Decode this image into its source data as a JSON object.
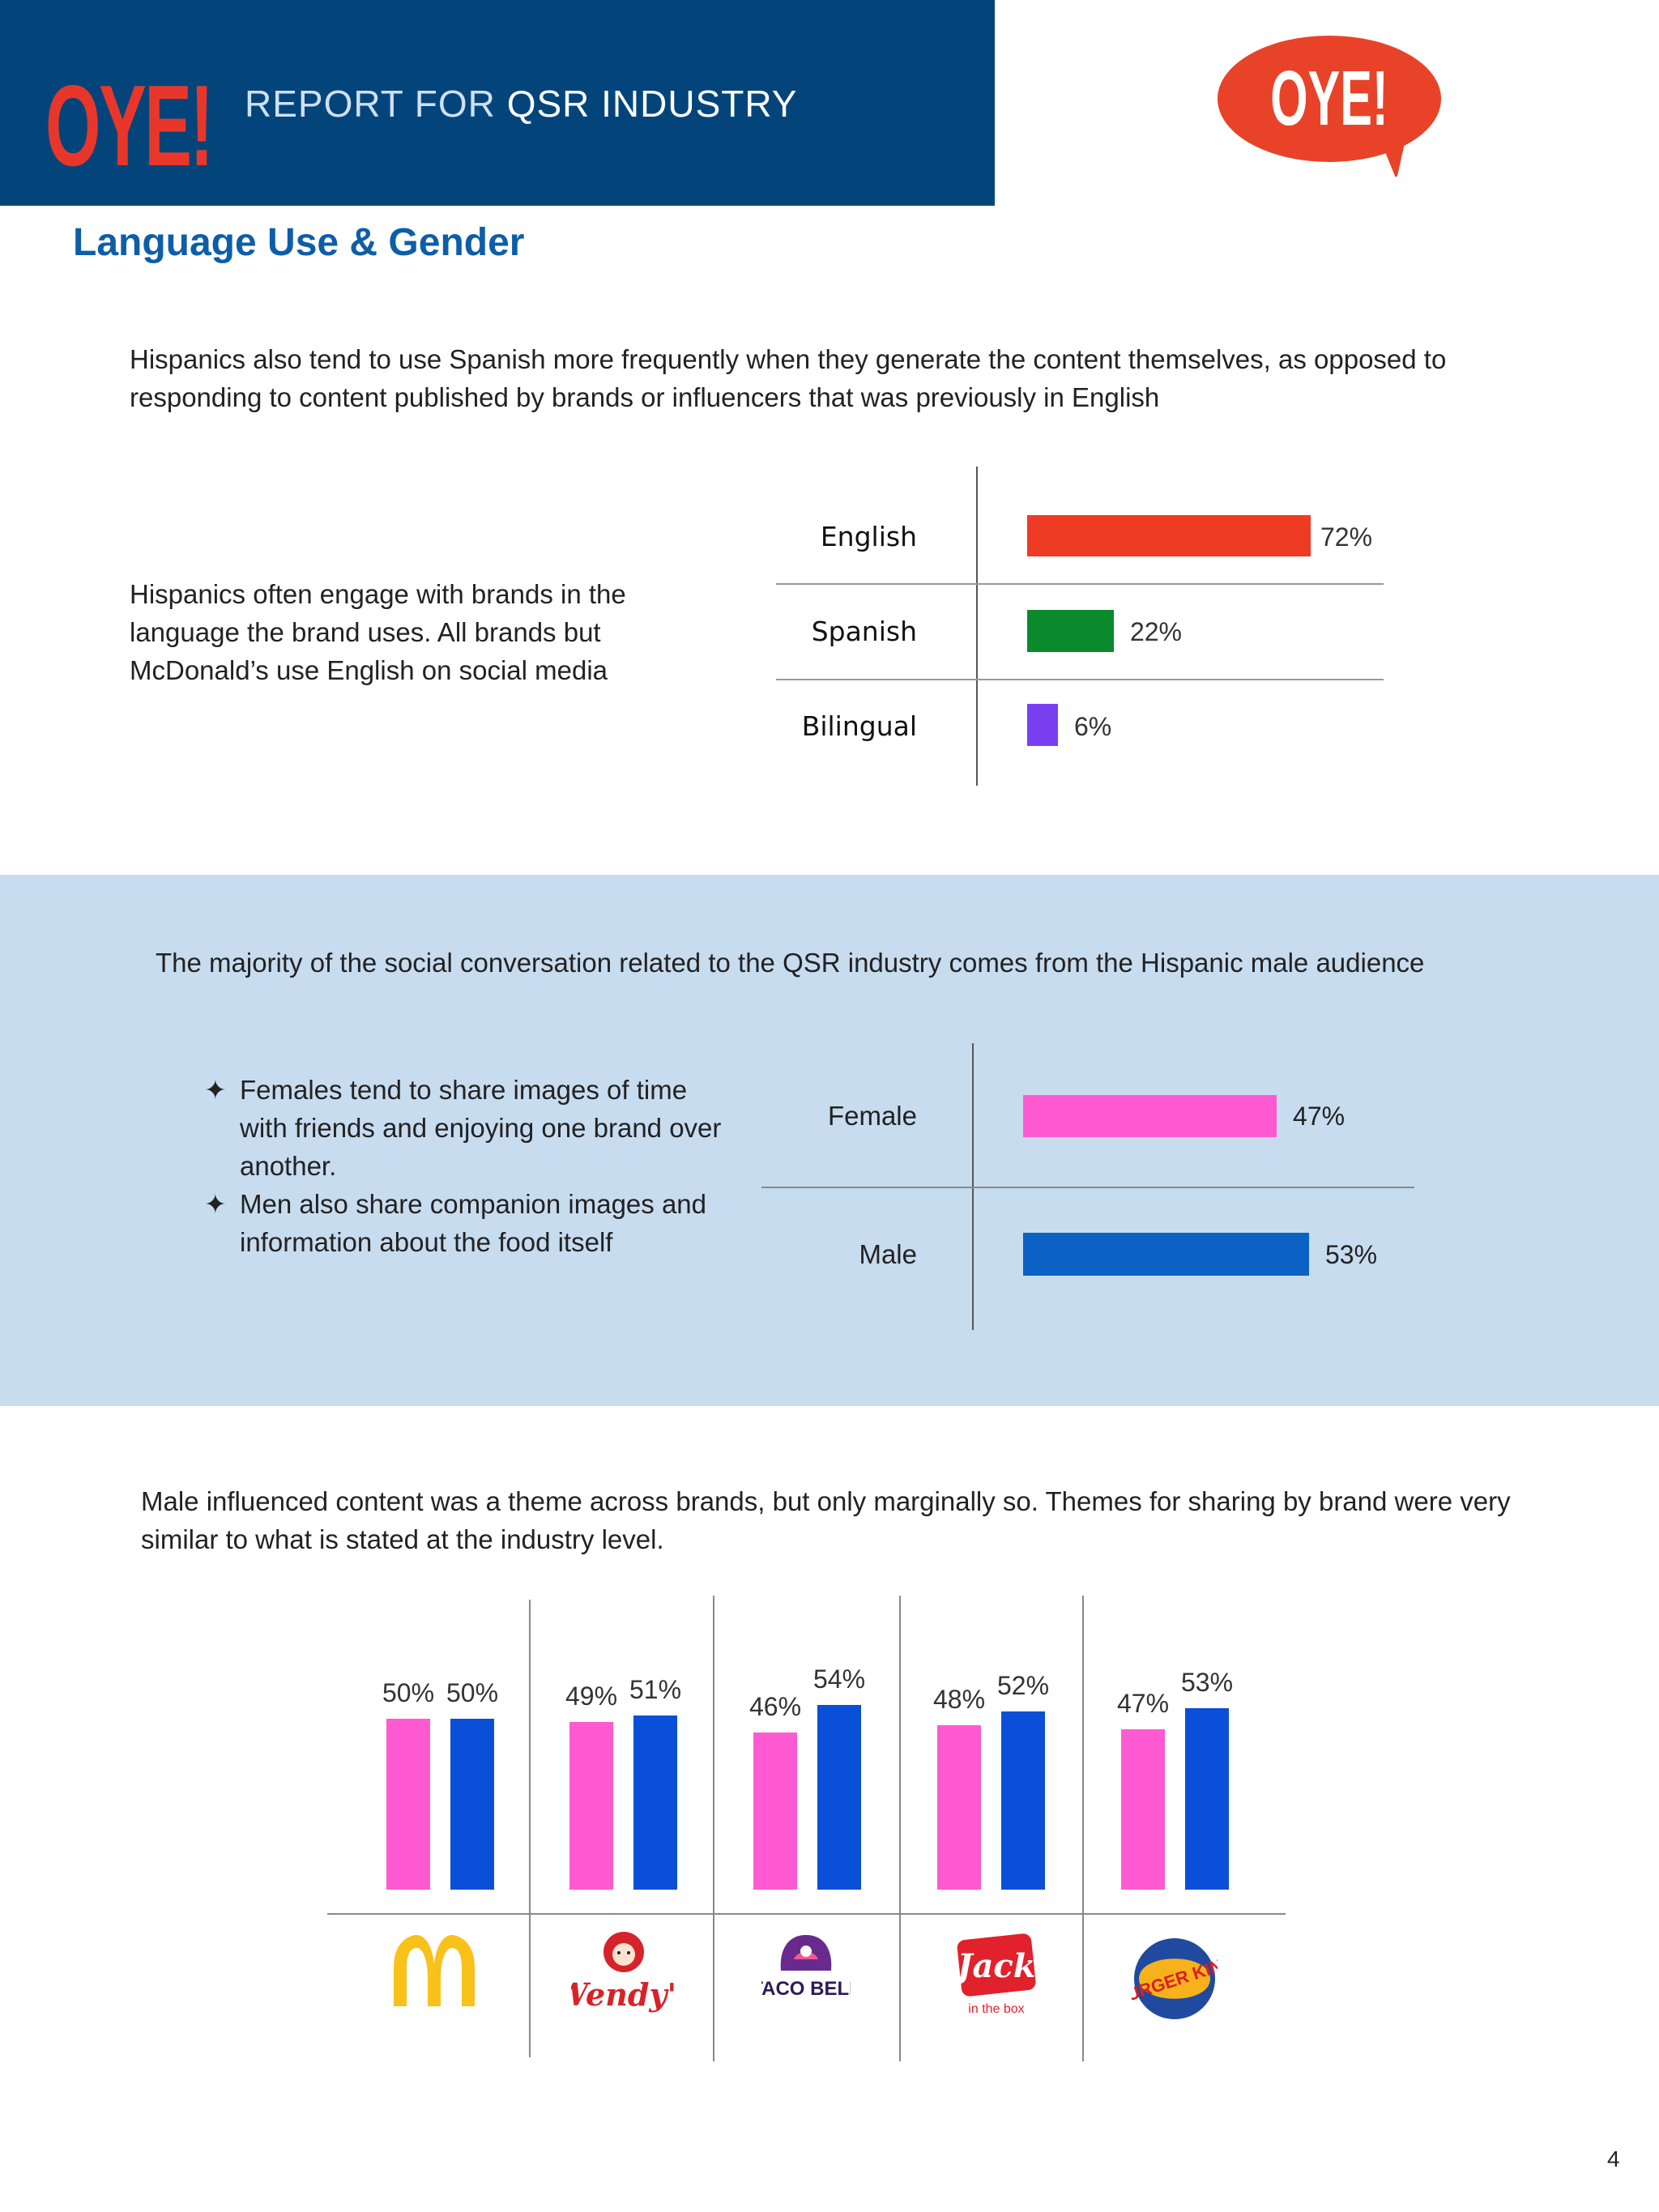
{
  "header": {
    "brand": "OYE!",
    "report_prefix": "REPORT FOR",
    "report_subject": "QSR INDUSTRY",
    "logo_text": "OYE!"
  },
  "page_title": "Language Use & Gender",
  "section1": {
    "intro": "Hispanics also tend to use Spanish more frequently when they generate the content themselves, as opposed to responding to content published by brands or influencers that was previously in English",
    "note": "Hispanics often engage with brands in the language the brand uses. All brands but McDonald’s use English on social media"
  },
  "section2": {
    "intro": "The majority of the social conversation related to the QSR industry comes from the Hispanic male audience",
    "bullets": [
      "Females tend to share images of time with friends and enjoying one brand over another.",
      "Men also share companion images and information about the food itself"
    ],
    "bullet_symbol": "✦"
  },
  "section3": {
    "intro": "Male influenced content was a theme across brands, but only marginally so. Themes for sharing by brand were very similar to what is stated at the industry level."
  },
  "page_number": "4",
  "colors": {
    "header_blue": "#03457b",
    "title_blue": "#0d5ea8",
    "band_blue": "#c8dcf0",
    "english": "#ee3b24",
    "spanish": "#0a8a2c",
    "bilingual": "#7b3ff2",
    "female": "#ff5ad2",
    "male_gender": "#0b62c4",
    "male_brand": "#0a4fd8"
  },
  "chart_data": [
    {
      "type": "bar",
      "orientation": "horizontal",
      "categories": [
        "English",
        "Spanish",
        "Bilingual"
      ],
      "values": [
        72,
        22,
        6
      ],
      "labels": [
        "72%",
        "22%",
        "6%"
      ],
      "xlim": [
        0,
        72
      ]
    },
    {
      "type": "bar",
      "orientation": "horizontal",
      "categories": [
        "Female",
        "Male"
      ],
      "values": [
        47,
        53
      ],
      "labels": [
        "47%",
        "53%"
      ],
      "xlim": [
        0,
        53
      ]
    },
    {
      "type": "bar",
      "orientation": "vertical",
      "categories": [
        "mcdonalds-logo",
        "wendys-logo",
        "taco-bell-logo",
        "jack-in-the-box-logo",
        "burger-king-logo"
      ],
      "logo_texts": [
        "M",
        "Wendy's",
        "TACO BELL",
        "Jack",
        "BURGER KING"
      ],
      "logo_subtexts": [
        "",
        "",
        "",
        "in the box",
        ""
      ],
      "series": [
        {
          "values": [
            50,
            49,
            46,
            48,
            47
          ],
          "labels": [
            "50%",
            "49%",
            "46%",
            "48%",
            "47%"
          ],
          "color": "#ff5ad2"
        },
        {
          "values": [
            50,
            51,
            54,
            52,
            53
          ],
          "labels": [
            "50%",
            "51%",
            "54%",
            "52%",
            "53%"
          ],
          "color": "#0a4fd8"
        }
      ],
      "ylim": [
        0,
        54
      ]
    }
  ]
}
